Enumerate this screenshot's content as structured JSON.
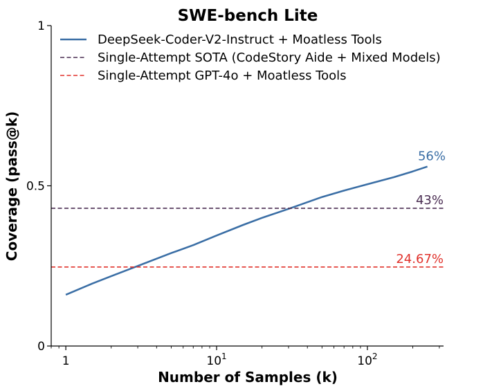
{
  "chart_data": {
    "type": "line",
    "title": "SWE-bench Lite",
    "xlabel": "Number of Samples (k)",
    "ylabel": "Coverage (pass@k)",
    "xscale": "log",
    "xlim": [
      0.8,
      320
    ],
    "ylim": [
      0,
      1
    ],
    "xticks": [
      {
        "value": 1,
        "base": "1",
        "exp": ""
      },
      {
        "value": 10,
        "base": "10",
        "exp": "1"
      },
      {
        "value": 100,
        "base": "10",
        "exp": "2"
      }
    ],
    "yticks": [
      {
        "value": 0,
        "label": "0"
      },
      {
        "value": 0.5,
        "label": "0.5"
      },
      {
        "value": 1,
        "label": "1"
      }
    ],
    "legend_position": "top-left",
    "series": [
      {
        "name": "DeepSeek-Coder-V2-Instruct + Moatless Tools",
        "style": "solid",
        "color": "#3a6ea5",
        "x": [
          1,
          1.5,
          2,
          3,
          5,
          7,
          10,
          15,
          20,
          30,
          50,
          70,
          100,
          150,
          200,
          250
        ],
        "y": [
          0.16,
          0.195,
          0.218,
          0.25,
          0.29,
          0.315,
          0.345,
          0.378,
          0.4,
          0.428,
          0.465,
          0.485,
          0.505,
          0.527,
          0.545,
          0.56
        ],
        "end_label": "56%"
      },
      {
        "name": "Single-Attempt SOTA (CodeStory Aide + Mixed Models)",
        "style": "dashed",
        "color": "#4a2d52",
        "constant": 0.43,
        "end_label": "43%"
      },
      {
        "name": "Single-Attempt GPT-4o + Moatless Tools",
        "style": "dashed",
        "color": "#e0302a",
        "constant": 0.2467,
        "end_label": "24.67%"
      }
    ]
  }
}
